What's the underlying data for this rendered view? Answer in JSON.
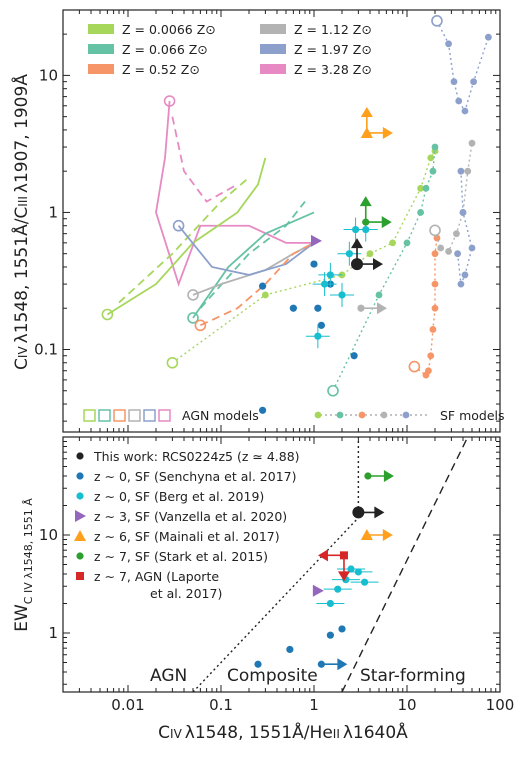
{
  "chart_data": [
    {
      "type": "scatter",
      "xscale": "log",
      "yscale": "log",
      "xlim": [
        0.002,
        100
      ],
      "ylim": [
        0.025,
        30
      ],
      "ylabel_parts": [
        "C",
        "IV",
        "λ1548, 1551Å/C",
        "III",
        "λ1907, 1909Å"
      ],
      "xticks": [
        "0.01",
        "0.1",
        "1",
        "10",
        "100"
      ],
      "yticks": [
        "0.1",
        "1",
        "10"
      ],
      "legend_metallicity": [
        {
          "label": "Z = 0.0066 Z⊙",
          "color": "#a6d75b"
        },
        {
          "label": "Z = 0.066 Z⊙",
          "color": "#66c2a5"
        },
        {
          "label": "Z = 0.52 Z⊙",
          "color": "#f59568"
        },
        {
          "label": "Z = 1.12 Z⊙",
          "color": "#b3b3b3"
        },
        {
          "label": "Z = 1.97 Z⊙",
          "color": "#8da0cb"
        },
        {
          "label": "Z = 3.28 Z⊙",
          "color": "#e78ac3"
        }
      ],
      "legend_models": {
        "agn": "AGN models",
        "sf": "SF models"
      },
      "sf_tracks": [
        {
          "color": "#a6d75b",
          "points": [
            [
              0.03,
              0.08
            ],
            [
              0.3,
              0.25
            ],
            [
              2,
              0.35
            ],
            [
              4,
              0.5
            ],
            [
              7,
              0.6
            ],
            [
              14,
              1.5
            ],
            [
              18,
              2.5
            ],
            [
              20,
              2.8
            ]
          ]
        },
        {
          "color": "#66c2a5",
          "points": [
            [
              1.6,
              0.05
            ],
            [
              5,
              0.25
            ],
            [
              10,
              0.6
            ],
            [
              14,
              1.0
            ],
            [
              16,
              1.5
            ],
            [
              19,
              2.0
            ],
            [
              20,
              3.0
            ]
          ]
        },
        {
          "color": "#f59568",
          "points": [
            [
              12,
              0.075
            ],
            [
              16,
              0.065
            ],
            [
              17,
              0.07
            ],
            [
              18,
              0.09
            ],
            [
              19,
              0.14
            ],
            [
              20,
              0.2
            ],
            [
              20,
              0.3
            ],
            [
              20,
              0.5
            ],
            [
              21,
              0.65
            ]
          ]
        },
        {
          "color": "#b3b3b3",
          "points": [
            [
              20,
              0.74
            ],
            [
              23,
              0.55
            ],
            [
              28,
              0.52
            ],
            [
              34,
              0.7
            ],
            [
              40,
              1.0
            ],
            [
              45,
              2.0
            ],
            [
              50,
              3.2
            ]
          ]
        },
        {
          "color": "#8da0cb",
          "points": [
            [
              35,
              0.5
            ],
            [
              38,
              0.3
            ],
            [
              42,
              0.35
            ],
            [
              50,
              0.55
            ],
            [
              40,
              1.0
            ],
            [
              38,
              2.0
            ]
          ]
        },
        {
          "color": "#8da0cb",
          "points": [
            [
              21,
              25
            ],
            [
              28,
              17
            ],
            [
              32,
              9
            ],
            [
              36,
              6.5
            ],
            [
              42,
              5.5
            ],
            [
              52,
              9
            ],
            [
              75,
              19
            ]
          ]
        }
      ],
      "sf_open_markers": [
        {
          "x": 0.03,
          "y": 0.08,
          "color": "#a6d75b"
        },
        {
          "x": 1.6,
          "y": 0.05,
          "color": "#66c2a5"
        },
        {
          "x": 12,
          "y": 0.075,
          "color": "#f59568"
        },
        {
          "x": 20,
          "y": 0.74,
          "color": "#b3b3b3"
        },
        {
          "x": 21,
          "y": 25,
          "color": "#8da0cb"
        }
      ],
      "agn_open_markers": [
        {
          "x": 0.006,
          "y": 0.18,
          "color": "#a6d75b"
        },
        {
          "x": 0.05,
          "y": 0.17,
          "color": "#66c2a5"
        },
        {
          "x": 0.06,
          "y": 0.15,
          "color": "#f59568"
        },
        {
          "x": 0.05,
          "y": 0.25,
          "color": "#b3b3b3"
        },
        {
          "x": 0.035,
          "y": 0.8,
          "color": "#8da0cb"
        },
        {
          "x": 0.028,
          "y": 6.5,
          "color": "#e78ac3"
        }
      ],
      "agn_grids": [
        {
          "color": "#e78ac3",
          "points": [
            [
              0.028,
              6.5
            ],
            [
              0.025,
              2.5
            ],
            [
              0.02,
              1.0
            ],
            [
              0.035,
              0.3
            ],
            [
              0.06,
              0.8
            ],
            [
              0.2,
              0.8
            ],
            [
              0.5,
              0.6
            ],
            [
              1.0,
              0.6
            ]
          ],
          "dashed": false
        },
        {
          "color": "#e78ac3",
          "points": [
            [
              0.03,
              5.0
            ],
            [
              0.04,
              2.0
            ],
            [
              0.07,
              1.2
            ],
            [
              0.15,
              1.6
            ]
          ],
          "dashed": true
        },
        {
          "color": "#a6d75b",
          "points": [
            [
              0.006,
              0.18
            ],
            [
              0.02,
              0.3
            ],
            [
              0.05,
              0.6
            ],
            [
              0.15,
              1.0
            ],
            [
              0.25,
              1.6
            ],
            [
              0.3,
              2.5
            ]
          ],
          "dashed": false
        },
        {
          "color": "#a6d75b",
          "points": [
            [
              0.008,
              0.22
            ],
            [
              0.03,
              0.5
            ],
            [
              0.1,
              1.2
            ],
            [
              0.2,
              1.8
            ]
          ],
          "dashed": true
        },
        {
          "color": "#66c2a5",
          "points": [
            [
              0.05,
              0.17
            ],
            [
              0.12,
              0.4
            ],
            [
              0.3,
              0.7
            ],
            [
              0.7,
              0.9
            ],
            [
              1.0,
              1.0
            ]
          ],
          "dashed": false
        },
        {
          "color": "#66c2a5",
          "points": [
            [
              0.06,
              0.2
            ],
            [
              0.2,
              0.5
            ],
            [
              0.5,
              0.8
            ],
            [
              0.8,
              1.2
            ]
          ],
          "dashed": true
        },
        {
          "color": "#b3b3b3",
          "points": [
            [
              0.05,
              0.25
            ],
            [
              0.1,
              0.3
            ],
            [
              0.3,
              0.38
            ],
            [
              0.6,
              0.5
            ],
            [
              1.0,
              0.6
            ]
          ],
          "dashed": false
        },
        {
          "color": "#8da0cb",
          "points": [
            [
              0.035,
              0.8
            ],
            [
              0.08,
              0.4
            ],
            [
              0.2,
              0.35
            ],
            [
              0.5,
              0.42
            ],
            [
              1.0,
              0.6
            ]
          ],
          "dashed": false
        },
        {
          "color": "#f59568",
          "points": [
            [
              0.06,
              0.15
            ],
            [
              0.15,
              0.2
            ],
            [
              0.3,
              0.3
            ],
            [
              0.6,
              0.5
            ],
            [
              1.0,
              0.6
            ]
          ],
          "dashed": true
        }
      ],
      "observations": [
        {
          "x": 0.28,
          "y": 0.036,
          "color": "#1f77b4",
          "marker": "circle",
          "arrow": "none"
        },
        {
          "x": 0.28,
          "y": 0.29,
          "color": "#1f77b4",
          "marker": "circle",
          "arrow": "none"
        },
        {
          "x": 0.6,
          "y": 0.2,
          "color": "#1f77b4",
          "marker": "circle",
          "arrow": "none"
        },
        {
          "x": 1.0,
          "y": 0.42,
          "color": "#1f77b4",
          "marker": "circle",
          "arrow": "none"
        },
        {
          "x": 1.1,
          "y": 0.2,
          "color": "#1f77b4",
          "marker": "circle",
          "arrow": "none"
        },
        {
          "x": 1.2,
          "y": 0.15,
          "color": "#1f77b4",
          "marker": "circle",
          "arrow": "none"
        },
        {
          "x": 1.5,
          "y": 0.3,
          "color": "#1f77b4",
          "marker": "circle",
          "arrow": "none"
        },
        {
          "x": 2.7,
          "y": 0.09,
          "color": "#1f77b4",
          "marker": "circle",
          "arrow": "none"
        },
        {
          "x": 1.1,
          "y": 0.125,
          "color": "#17becf",
          "marker": "circle",
          "arrow": "none"
        },
        {
          "x": 1.3,
          "y": 0.3,
          "color": "#17becf",
          "marker": "circle",
          "arrow": "none"
        },
        {
          "x": 1.5,
          "y": 0.35,
          "color": "#17becf",
          "marker": "circle",
          "arrow": "none"
        },
        {
          "x": 2.0,
          "y": 0.25,
          "color": "#17becf",
          "marker": "circle",
          "arrow": "none"
        },
        {
          "x": 2.4,
          "y": 0.5,
          "color": "#17becf",
          "marker": "circle",
          "arrow": "none"
        },
        {
          "x": 2.8,
          "y": 0.75,
          "color": "#17becf",
          "marker": "circle",
          "arrow": "none"
        },
        {
          "x": 3.6,
          "y": 0.75,
          "color": "#17becf",
          "marker": "circle",
          "arrow": "none"
        },
        {
          "x": 2.9,
          "y": 0.42,
          "color": "#222222",
          "marker": "circle_big",
          "arrow": "right_up"
        },
        {
          "x": 1.05,
          "y": 0.62,
          "color": "#9467bd",
          "marker": "tri_right",
          "arrow": "none"
        },
        {
          "x": 3.7,
          "y": 3.8,
          "color": "#ff9f1c",
          "marker": "tri_up",
          "arrow": "right_up"
        },
        {
          "x": 3.6,
          "y": 0.85,
          "color": "#2ca02c",
          "marker": "circle",
          "arrow": "right_up"
        },
        {
          "x": 3.2,
          "y": 0.2,
          "color": "#b3b3b3",
          "marker": "circle",
          "arrow": "right"
        }
      ]
    },
    {
      "type": "scatter",
      "xscale": "log",
      "yscale": "log",
      "xlim": [
        0.002,
        100
      ],
      "ylim": [
        0.25,
        100
      ],
      "xlabel_parts": [
        "C",
        "IV",
        "λ1548, 1551Å/He",
        "II",
        "λ1640Å"
      ],
      "ylabel_parts": [
        "EW",
        "C IV λ1548, 1551 Å"
      ],
      "xticks": [
        "0.01",
        "0.1",
        "1",
        "10",
        "100"
      ],
      "yticks": [
        "1",
        "10"
      ],
      "regions": [
        "AGN",
        "Composite",
        "Star-forming"
      ],
      "legend": [
        {
          "label": "This work: RCS0224z5 (z ≃ 4.88)",
          "color": "#222222",
          "marker": "circle"
        },
        {
          "label": "z ∼ 0, SF (Senchyna et al. 2017)",
          "color": "#1f77b4",
          "marker": "circle"
        },
        {
          "label": "z ∼ 0, SF (Berg et al. 2019)",
          "color": "#17becf",
          "marker": "circle"
        },
        {
          "label": "z ∼ 3, SF (Vanzella et al. 2020)",
          "color": "#9467bd",
          "marker": "tri_right"
        },
        {
          "label": "z ∼ 6, SF (Mainali et al. 2017)",
          "color": "#ff9f1c",
          "marker": "tri_up"
        },
        {
          "label": "z ∼ 7, SF (Stark et al. 2015)",
          "color": "#2ca02c",
          "marker": "circle"
        },
        {
          "label": "z ∼ 7, AGN (Laporte",
          "label2": "et al. 2017)",
          "color": "#d62728",
          "marker": "square"
        }
      ],
      "boundary_dotted": [
        [
          0.05,
          0.25
        ],
        [
          3.0,
          15
        ],
        [
          3.0,
          100
        ]
      ],
      "boundary_dashed": [
        [
          2.0,
          0.25
        ],
        [
          45,
          100
        ]
      ],
      "observations": [
        {
          "x": 0.25,
          "y": 0.48,
          "color": "#1f77b4",
          "marker": "circle",
          "arrow": "none"
        },
        {
          "x": 0.55,
          "y": 0.68,
          "color": "#1f77b4",
          "marker": "circle",
          "arrow": "none"
        },
        {
          "x": 1.5,
          "y": 0.95,
          "color": "#1f77b4",
          "marker": "circle",
          "arrow": "none"
        },
        {
          "x": 1.2,
          "y": 0.48,
          "color": "#1f77b4",
          "marker": "circle",
          "arrow": "right"
        },
        {
          "x": 2.0,
          "y": 1.1,
          "color": "#1f77b4",
          "marker": "circle",
          "arrow": "none"
        },
        {
          "x": 1.5,
          "y": 2.0,
          "color": "#17becf",
          "marker": "circle",
          "arrow": "none"
        },
        {
          "x": 2.2,
          "y": 3.5,
          "color": "#17becf",
          "marker": "circle",
          "arrow": "none"
        },
        {
          "x": 2.5,
          "y": 4.5,
          "color": "#17becf",
          "marker": "circle",
          "arrow": "none"
        },
        {
          "x": 3.0,
          "y": 4.2,
          "color": "#17becf",
          "marker": "circle",
          "arrow": "none"
        },
        {
          "x": 3.5,
          "y": 3.3,
          "color": "#17becf",
          "marker": "circle",
          "arrow": "none"
        },
        {
          "x": 1.8,
          "y": 2.8,
          "color": "#17becf",
          "marker": "circle",
          "arrow": "none"
        },
        {
          "x": 3.0,
          "y": 17,
          "color": "#222222",
          "marker": "circle_big",
          "arrow": "right"
        },
        {
          "x": 1.1,
          "y": 2.7,
          "color": "#9467bd",
          "marker": "tri_right",
          "arrow": "none"
        },
        {
          "x": 3.7,
          "y": 10,
          "color": "#ff9f1c",
          "marker": "tri_up",
          "arrow": "right"
        },
        {
          "x": 3.8,
          "y": 40,
          "color": "#2ca02c",
          "marker": "circle",
          "arrow": "right"
        },
        {
          "x": 2.1,
          "y": 6.2,
          "color": "#d62728",
          "marker": "square",
          "arrow": "left_down"
        }
      ]
    }
  ]
}
